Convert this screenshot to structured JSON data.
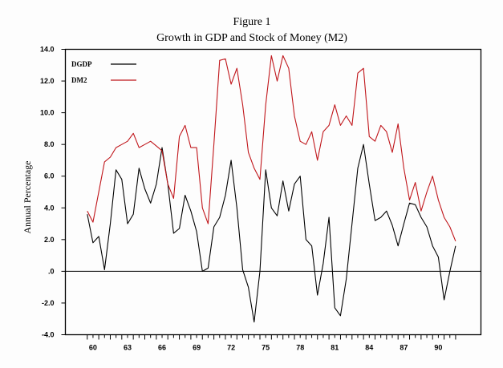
{
  "chart_data": {
    "type": "line",
    "title": "Figure 1",
    "subtitle": "Growth in GDP and Stock of Money (M2)",
    "xlabel": "",
    "ylabel": "Annual Percentage",
    "ylim": [
      -4.0,
      14.0
    ],
    "xlim": [
      1958.1,
      1994.2
    ],
    "yticks": [
      {
        "value": 14.0,
        "label": "14.0"
      },
      {
        "value": 12.0,
        "label": "12.0"
      },
      {
        "value": 10.0,
        "label": "10.0"
      },
      {
        "value": 8.0,
        "label": "8.0"
      },
      {
        "value": 6.0,
        "label": "6.0"
      },
      {
        "value": 4.0,
        "label": "4.0"
      },
      {
        "value": 2.0,
        "label": "2.0"
      },
      {
        "value": 0.0,
        "label": ".0"
      },
      {
        "value": -2.0,
        "label": "-2.0"
      },
      {
        "value": -4.0,
        "label": "-4.0"
      }
    ],
    "xticks": [
      {
        "value": 1960.5,
        "label": "60"
      },
      {
        "value": 1963.5,
        "label": "63"
      },
      {
        "value": 1966.5,
        "label": "66"
      },
      {
        "value": 1969.5,
        "label": "69"
      },
      {
        "value": 1972.5,
        "label": "72"
      },
      {
        "value": 1975.5,
        "label": "75"
      },
      {
        "value": 1978.5,
        "label": "78"
      },
      {
        "value": 1981.5,
        "label": "81"
      },
      {
        "value": 1984.5,
        "label": "84"
      },
      {
        "value": 1987.5,
        "label": "87"
      },
      {
        "value": 1990.5,
        "label": "90"
      }
    ],
    "minor_tick_range": [
      1960,
      1992
    ],
    "zero_line": true,
    "grid": false,
    "legend_position": "top-left",
    "x": [
      1960.0,
      1960.5,
      1961.0,
      1961.5,
      1962.0,
      1962.5,
      1963.0,
      1963.5,
      1964.0,
      1964.5,
      1965.0,
      1965.5,
      1966.0,
      1966.5,
      1967.0,
      1967.5,
      1968.0,
      1968.5,
      1969.0,
      1969.5,
      1970.0,
      1970.5,
      1971.0,
      1971.5,
      1972.0,
      1972.5,
      1973.0,
      1973.5,
      1974.0,
      1974.5,
      1975.0,
      1975.5,
      1976.0,
      1976.5,
      1977.0,
      1977.5,
      1978.0,
      1978.5,
      1979.0,
      1979.5,
      1980.0,
      1980.5,
      1981.0,
      1981.5,
      1982.0,
      1982.5,
      1983.0,
      1983.5,
      1984.0,
      1984.5,
      1985.0,
      1985.5,
      1986.0,
      1986.5,
      1987.0,
      1987.5,
      1988.0,
      1988.5,
      1989.0,
      1989.5,
      1990.0,
      1990.5,
      1991.0,
      1991.5,
      1992.0
    ],
    "series": [
      {
        "name": "DGDP",
        "color": "#000000",
        "values": [
          3.6,
          1.8,
          2.2,
          0.1,
          3.0,
          6.4,
          5.8,
          3.0,
          3.6,
          6.5,
          5.2,
          4.3,
          5.5,
          7.8,
          5.5,
          2.4,
          2.7,
          4.8,
          3.8,
          2.5,
          0.0,
          0.2,
          2.8,
          3.4,
          4.8,
          7.0,
          4.0,
          0.1,
          -1.0,
          -3.2,
          0.0,
          6.4,
          4.0,
          3.5,
          5.7,
          3.8,
          5.5,
          6.0,
          2.0,
          1.6,
          -1.5,
          0.5,
          3.4,
          -2.3,
          -2.8,
          -0.5,
          3.0,
          6.5,
          8.0,
          5.5,
          3.2,
          3.4,
          3.8,
          2.9,
          1.6,
          3.0,
          4.3,
          4.2,
          3.4,
          2.8,
          1.6,
          0.9,
          -1.8,
          0.0,
          1.6
        ]
      },
      {
        "name": "DM2",
        "color": "#c0161b",
        "values": [
          3.8,
          3.1,
          5.0,
          6.9,
          7.2,
          7.8,
          8.0,
          8.2,
          8.7,
          7.8,
          8.0,
          8.2,
          7.9,
          7.6,
          5.5,
          4.6,
          8.5,
          9.2,
          7.8,
          7.8,
          4.0,
          3.0,
          8.0,
          13.3,
          13.4,
          11.8,
          12.8,
          10.5,
          7.5,
          6.5,
          5.8,
          10.5,
          13.6,
          12.0,
          13.6,
          12.8,
          9.8,
          8.2,
          8.0,
          8.8,
          7.0,
          8.8,
          9.2,
          10.5,
          9.2,
          9.8,
          9.2,
          12.5,
          12.8,
          8.5,
          8.2,
          9.2,
          8.8,
          7.5,
          9.3,
          6.5,
          4.5,
          5.6,
          3.8,
          5.0,
          6.0,
          4.5,
          3.4,
          2.8,
          1.9
        ]
      }
    ]
  }
}
